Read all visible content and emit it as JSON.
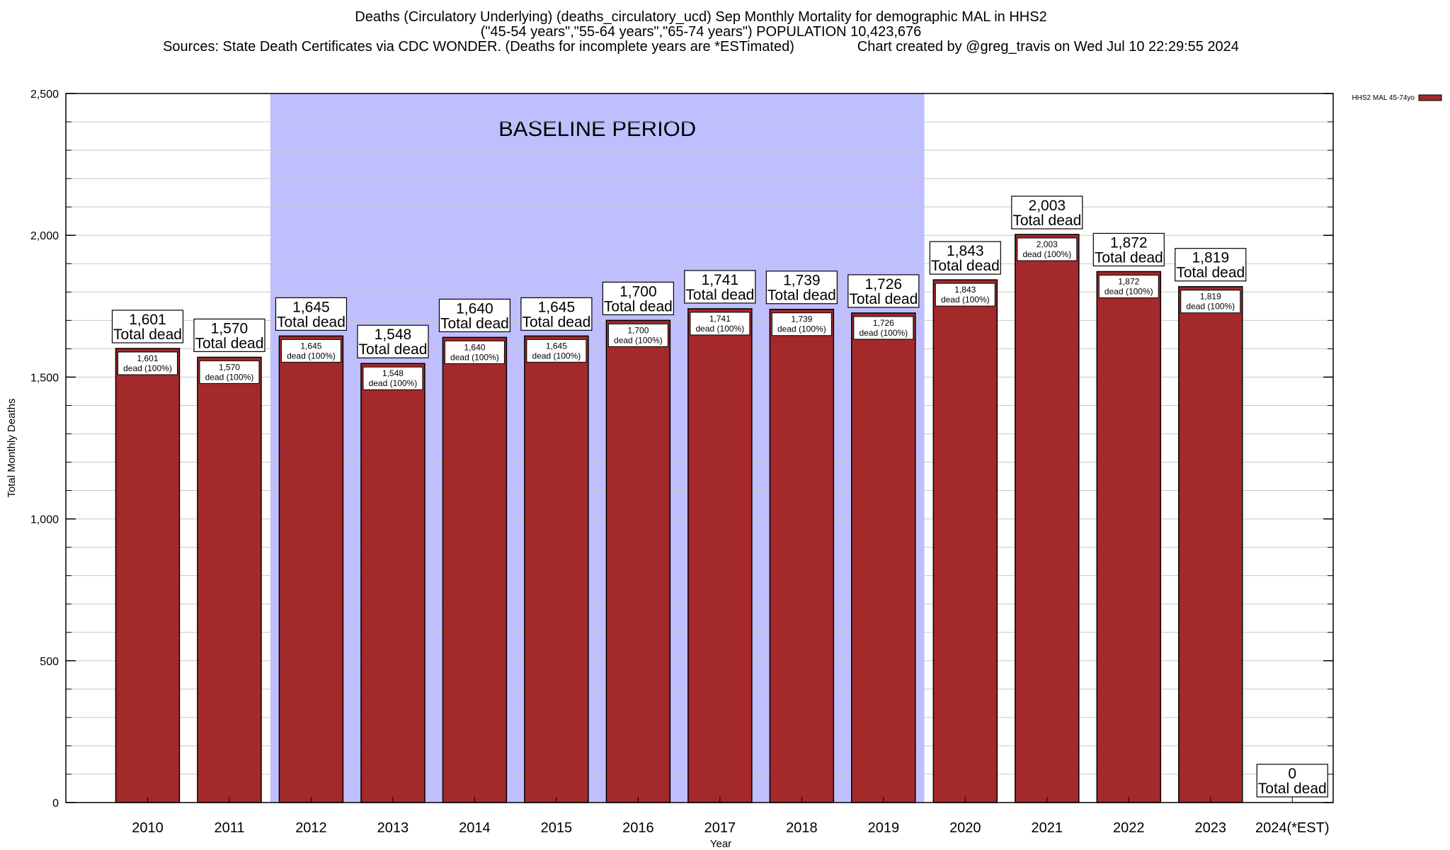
{
  "header": {
    "title_line1": "Deaths (Circulatory Underlying) (deaths_circulatory_ucd) Sep Monthly Mortality for demographic MAL in HHS2",
    "title_line2": "(\"45-54 years\",\"55-64 years\",\"65-74 years\") POPULATION 10,423,676",
    "title_line3": "Sources: State Death Certificates via CDC WONDER. (Deaths for incomplete years are *ESTimated)                Chart created by @greg_travis on Wed Jul 10 22:29:55 2024"
  },
  "colors": {
    "bar": "#a4292a",
    "baseline_band": "#bfbfff",
    "gridline": "#c8c8c8",
    "axis": "#000000"
  },
  "chart_data": {
    "type": "bar",
    "xlabel": "Year",
    "ylabel": "Total Monthly Deaths",
    "ylim": [
      0,
      2500
    ],
    "y_ticks": [
      0,
      500,
      1000,
      1500,
      2000,
      2500
    ],
    "y_tick_labels": [
      "0",
      "500",
      "1,000",
      "1,500",
      "2,000",
      "2,500"
    ],
    "grid": true,
    "legend": {
      "position": "top-right",
      "entries": [
        "HHS2 MAL 45-74yo"
      ]
    },
    "categories": [
      "2010",
      "2011",
      "2012",
      "2013",
      "2014",
      "2015",
      "2016",
      "2017",
      "2018",
      "2019",
      "2020",
      "2021",
      "2022",
      "2023",
      "2024(*EST)"
    ],
    "series": [
      {
        "name": "HHS2 MAL 45-74yo",
        "values": [
          1601,
          1570,
          1645,
          1548,
          1640,
          1645,
          1700,
          1741,
          1739,
          1726,
          1843,
          2003,
          1872,
          1819,
          0
        ]
      }
    ],
    "top_labels": [
      "1,601",
      "1,570",
      "1,645",
      "1,548",
      "1,640",
      "1,645",
      "1,700",
      "1,741",
      "1,739",
      "1,726",
      "1,843",
      "2,003",
      "1,872",
      "1,819",
      "0"
    ],
    "top_label_caption": "Total dead",
    "inner_labels": [
      "1,601",
      "1,570",
      "1,645",
      "1,548",
      "1,640",
      "1,645",
      "1,700",
      "1,741",
      "1,739",
      "1,726",
      "1,843",
      "2,003",
      "1,872",
      "1,819"
    ],
    "inner_label_caption": "dead (100%)",
    "annotation": {
      "text": "BASELINE PERIOD",
      "span": [
        "2012",
        "2019"
      ]
    }
  }
}
